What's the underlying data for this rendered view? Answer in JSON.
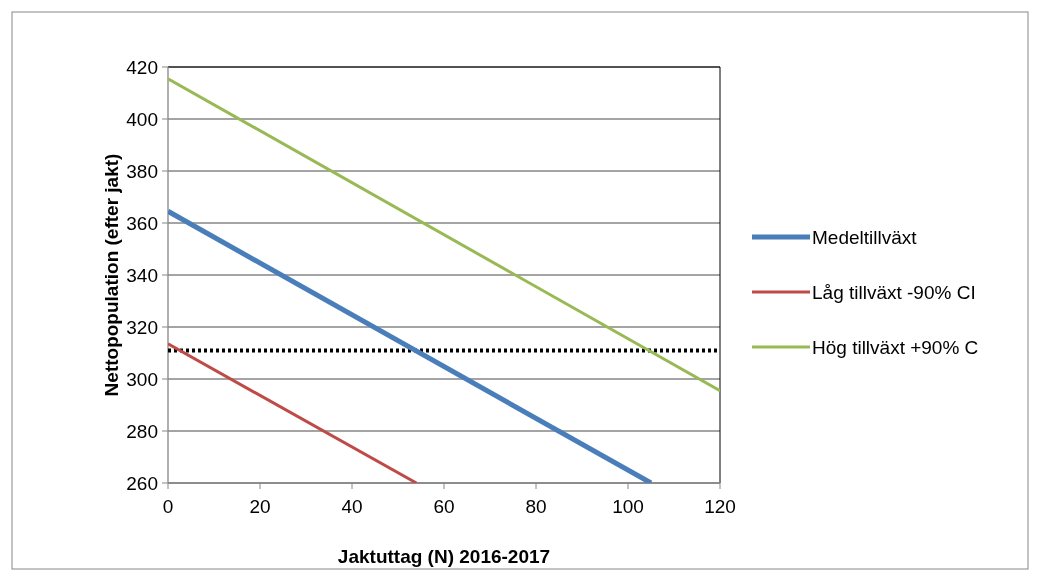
{
  "chart_data": {
    "type": "line",
    "xlabel": "Jaktuttag (N) 2016-2017",
    "ylabel": "Nettopopulation (efter jakt)",
    "xlim": [
      0,
      120
    ],
    "xticks": [
      0,
      20,
      40,
      60,
      80,
      100,
      120
    ],
    "ylim": [
      260,
      420
    ],
    "yticks": [
      260,
      280,
      300,
      320,
      340,
      360,
      380,
      400,
      420
    ],
    "grid": "y",
    "legend": "right",
    "marker": "none",
    "series": [
      {
        "name": "Medeltillväxt",
        "color": "#4a7ebb",
        "x": [
          0,
          105
        ],
        "values": [
          364.5,
          260
        ]
      },
      {
        "name": "Låg tillväxt -90% CI",
        "color": "#be4b48",
        "x": [
          0,
          54
        ],
        "values": [
          313.5,
          260
        ]
      },
      {
        "name": "Hög tillväxt +90% C",
        "color": "#98b954",
        "x": [
          0,
          120
        ],
        "values": [
          415.5,
          295.5
        ]
      }
    ],
    "ref_lines": [
      {
        "axis": "y",
        "value": 311,
        "color": "#000000",
        "line_style": "dotted"
      }
    ]
  }
}
